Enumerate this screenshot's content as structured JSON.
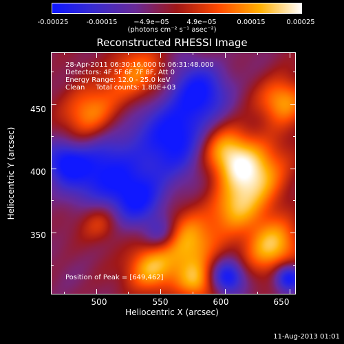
{
  "colorbar": {
    "ticks": [
      "-0.00025",
      "-0.00015",
      "−4.9e−05",
      "4.9e−05",
      "0.00015",
      "0.00025"
    ],
    "units": "(photons cm⁻² s⁻¹ asec⁻²)",
    "range": [
      -0.00025,
      0.00025
    ],
    "colors": [
      "#1018ff",
      "#3a2cd0",
      "#6a2a98",
      "#a01818",
      "#ff4a00",
      "#ffb000",
      "#ffffff"
    ]
  },
  "chart_data": {
    "type": "heatmap",
    "title": "Reconstructed RHESSI Image",
    "xlabel": "Heliocentric X (arcsec)",
    "ylabel": "Heliocentric Y (arcsec)",
    "xlim": [
      465,
      655
    ],
    "ylim": [
      302,
      490
    ],
    "x_ticks": [
      500,
      550,
      600,
      650
    ],
    "y_ticks": [
      350,
      400,
      450
    ],
    "grid": false,
    "info": [
      "28-Apr-2011 06:30:16.000 to 06:31:48.000",
      "Detectors: 4F 5F 6F 7F 8F, Att 0",
      "Energy Range: 12.0 - 25.0 keV",
      "Clean     Total counts: 1.80E+03"
    ],
    "peak_label": "Position of Peak = [649,462]",
    "peak_position": [
      649,
      462
    ]
  },
  "footer": {
    "date": "11-Aug-2013 01:01"
  }
}
